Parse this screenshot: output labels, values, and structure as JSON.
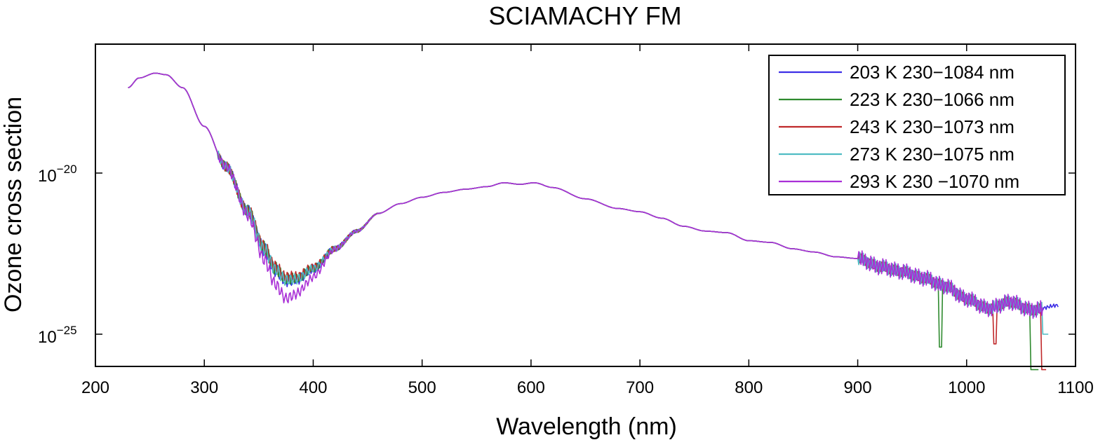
{
  "chart_data": {
    "type": "line",
    "title": "SCIAMACHY FM",
    "xlabel": "Wavelength (nm)",
    "ylabel": "Ozone cross section",
    "yscale": "log",
    "xlim": [
      200,
      1100
    ],
    "ylim_log10": [
      -26,
      -16
    ],
    "x_ticks": [
      200,
      300,
      400,
      500,
      600,
      700,
      800,
      900,
      1000,
      1100
    ],
    "x_tick_labels": [
      "200",
      "300",
      "400",
      "500",
      "600",
      "700",
      "800",
      "900",
      "1000",
      "1100"
    ],
    "y_ticks": [
      {
        "base": "10",
        "exponent": "−20",
        "log10": -20
      },
      {
        "base": "10",
        "exponent": "−25",
        "log10": -25
      }
    ],
    "legend_position": "top-right",
    "base_curve": {
      "description_units": "x in nm, y as log10 of cross section",
      "x": [
        230,
        240,
        255,
        265,
        280,
        300,
        320,
        340,
        355,
        365,
        375,
        385,
        400,
        420,
        440,
        460,
        480,
        500,
        520,
        540,
        560,
        575,
        590,
        603,
        620,
        650,
        680,
        700,
        720,
        740,
        760,
        780,
        800,
        820,
        840,
        860,
        880,
        900,
        920,
        940,
        960,
        980,
        1000,
        1020,
        1040,
        1060,
        1085
      ],
      "log10y": [
        -17.35,
        -17.05,
        -16.9,
        -16.95,
        -17.35,
        -18.55,
        -19.8,
        -21.2,
        -22.4,
        -23.05,
        -23.4,
        -23.35,
        -23.0,
        -22.35,
        -21.8,
        -21.25,
        -20.95,
        -20.75,
        -20.6,
        -20.5,
        -20.42,
        -20.3,
        -20.35,
        -20.3,
        -20.45,
        -20.8,
        -21.1,
        -21.2,
        -21.4,
        -21.65,
        -21.8,
        -21.85,
        -22.1,
        -22.15,
        -22.35,
        -22.45,
        -22.6,
        -22.65,
        -22.9,
        -23.05,
        -23.25,
        -23.5,
        -23.9,
        -24.2,
        -24.0,
        -24.25,
        -24.1
      ]
    },
    "series": [
      {
        "name": "203 K  230−1084 nm",
        "color": "#3d2ee6"
      },
      {
        "name": "223 K  230−1066 nm",
        "color": "#2e8a2e"
      },
      {
        "name": "243 K  230−1073 nm",
        "color": "#c0282a"
      },
      {
        "name": "273 K  230−1075 nm",
        "color": "#4fbcc4"
      },
      {
        "name": "293 K 230 −1070 nm",
        "color": "#a92fd6"
      }
    ]
  }
}
